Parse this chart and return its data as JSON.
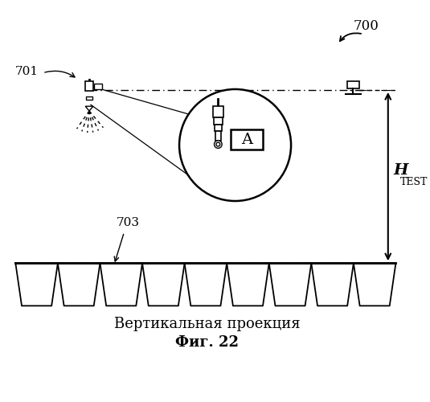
{
  "bg_color": "#ffffff",
  "title_caption": "Вертикальная проекция",
  "fig_label": "Фиг. 22",
  "label_700": "700",
  "label_701": "701",
  "label_703": "703",
  "label_H": "H",
  "label_TEST": "TEST",
  "label_A": "A",
  "fig_width": 535,
  "fig_height": 500
}
